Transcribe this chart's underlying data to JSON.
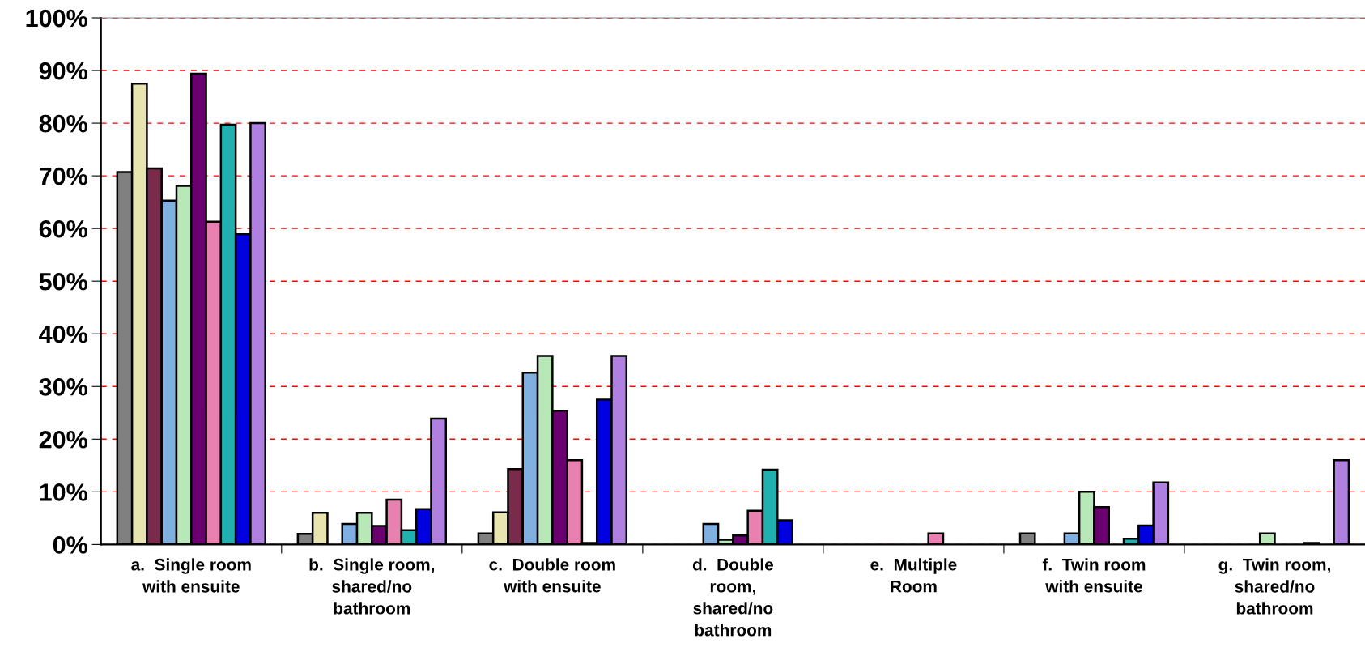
{
  "chart_data": {
    "type": "bar",
    "categories": [
      "a.  Single room\nwith ensuite",
      "b.  Single room,\nshared/no\nbathroom",
      "c.  Double room\nwith ensuite",
      "d.  Double\nroom,\nshared/no\nbathroom",
      "e.  Multiple\nRoom",
      "f.  Twin room\nwith ensuite",
      "g.  Twin room,\nshared/no\nbathroom"
    ],
    "series": [
      {
        "color": "#808080",
        "values": [
          70.7,
          2.0,
          2.1,
          null,
          null,
          2.1,
          null
        ]
      },
      {
        "color": "#e8e4b0",
        "values": [
          87.5,
          6.0,
          6.1,
          null,
          null,
          null,
          null
        ]
      },
      {
        "color": "#7a2a4a",
        "values": [
          71.4,
          null,
          14.3,
          null,
          null,
          null,
          null
        ]
      },
      {
        "color": "#7fb0e0",
        "values": [
          65.3,
          3.9,
          32.6,
          3.9,
          null,
          2.1,
          null
        ]
      },
      {
        "color": "#b8e8b8",
        "values": [
          68.1,
          6.0,
          35.8,
          0.9,
          null,
          10.0,
          2.1
        ]
      },
      {
        "color": "#6a0070",
        "values": [
          89.4,
          3.5,
          25.4,
          1.7,
          null,
          7.1,
          null
        ]
      },
      {
        "color": "#e880b0",
        "values": [
          61.3,
          8.5,
          16.0,
          6.4,
          2.1,
          null,
          null
        ]
      },
      {
        "color": "#20b0b0",
        "values": [
          79.7,
          2.7,
          0.3,
          14.2,
          null,
          1.1,
          0.3
        ]
      },
      {
        "color": "#0000e0",
        "values": [
          58.9,
          6.7,
          27.5,
          4.6,
          null,
          3.6,
          null
        ]
      },
      {
        "color": "#b080e0",
        "values": [
          80.0,
          23.9,
          35.8,
          null,
          null,
          11.8,
          16.0
        ]
      }
    ],
    "ylim": [
      0,
      100
    ],
    "yticks": [
      {
        "value": 0,
        "label": "0%"
      },
      {
        "value": 10,
        "label": "10%"
      },
      {
        "value": 20,
        "label": "20%"
      },
      {
        "value": 30,
        "label": "30%"
      },
      {
        "value": 40,
        "label": "40%"
      },
      {
        "value": 50,
        "label": "50%"
      },
      {
        "value": 60,
        "label": "60%"
      },
      {
        "value": 70,
        "label": "70%"
      },
      {
        "value": 80,
        "label": "80%"
      },
      {
        "value": 90,
        "label": "90%"
      },
      {
        "value": 100,
        "label": "100%"
      }
    ],
    "grid": "y"
  }
}
